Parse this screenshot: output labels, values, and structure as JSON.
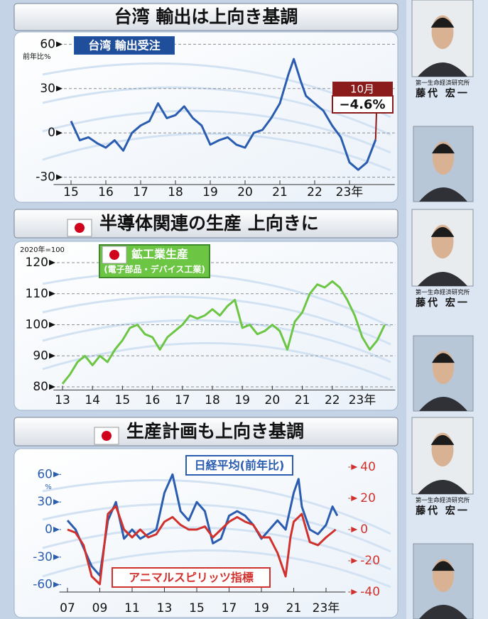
{
  "chart_data": [
    {
      "type": "line",
      "title": "台湾 輸出は上向き基調",
      "y_unit": "前年比%",
      "series": [
        {
          "name": "台湾 輸出受注",
          "color": "#2a5db0",
          "x": [
            2015,
            2015.25,
            2015.5,
            2015.75,
            2016,
            2016.25,
            2016.5,
            2016.75,
            2017,
            2017.25,
            2017.5,
            2017.75,
            2018,
            2018.25,
            2018.5,
            2018.75,
            2019,
            2019.25,
            2019.5,
            2019.75,
            2020,
            2020.25,
            2020.5,
            2020.75,
            2021,
            2021.25,
            2021.4,
            2021.6,
            2021.75,
            2022,
            2022.25,
            2022.5,
            2022.75,
            2023,
            2023.25,
            2023.5,
            2023.75
          ],
          "values": [
            8,
            -5,
            -3,
            -7,
            -10,
            -5,
            -12,
            0,
            5,
            8,
            20,
            10,
            12,
            18,
            10,
            5,
            -8,
            -5,
            -3,
            -8,
            -10,
            0,
            2,
            10,
            20,
            40,
            50,
            35,
            25,
            20,
            15,
            5,
            -3,
            -20,
            -25,
            -20,
            -4.6
          ],
          "value_labels": [
            null,
            null,
            null,
            null,
            null,
            null,
            null,
            null,
            null,
            null,
            null,
            null,
            null,
            null,
            null,
            null,
            null,
            null,
            null,
            null,
            null,
            null,
            null,
            null,
            null,
            null,
            null,
            null,
            null,
            null,
            null,
            null,
            null,
            null,
            null,
            null,
            "−4.6%"
          ]
        }
      ],
      "annotation": "10月",
      "xlim": [
        2014.5,
        2024.3
      ],
      "xticks": [
        {
          "value": 2015,
          "label": "15"
        },
        {
          "value": 2016,
          "label": "16"
        },
        {
          "value": 2017,
          "label": "17"
        },
        {
          "value": 2018,
          "label": "18"
        },
        {
          "value": 2019,
          "label": "19"
        },
        {
          "value": 2020,
          "label": "20"
        },
        {
          "value": 2021,
          "label": "21"
        },
        {
          "value": 2022,
          "label": "22"
        },
        {
          "value": 2023,
          "label": "23年"
        }
      ],
      "ylim": [
        -35,
        65
      ],
      "yticks": [
        -30,
        0,
        30,
        60
      ],
      "grid": true
    },
    {
      "type": "line",
      "title": "半導体関連の生産 上向きに",
      "y_unit": "2020年=100",
      "series": [
        {
          "name": "鉱工業生産",
          "note": "(電子部品・デバイス工業)",
          "color": "#6cc644",
          "x": [
            2013,
            2013.25,
            2013.5,
            2013.75,
            2014,
            2014.25,
            2014.5,
            2014.75,
            2015,
            2015.25,
            2015.5,
            2015.75,
            2016,
            2016.25,
            2016.5,
            2016.75,
            2017,
            2017.25,
            2017.5,
            2017.75,
            2018,
            2018.25,
            2018.5,
            2018.75,
            2019,
            2019.25,
            2019.5,
            2019.75,
            2020,
            2020.25,
            2020.5,
            2020.75,
            2021,
            2021.25,
            2021.5,
            2021.75,
            2022,
            2022.25,
            2022.5,
            2022.75,
            2023,
            2023.25,
            2023.5,
            2023.75
          ],
          "values": [
            81,
            84,
            88,
            90,
            87,
            90,
            88,
            92,
            95,
            99,
            100,
            97,
            96,
            92,
            96,
            98,
            100,
            103,
            102,
            103,
            105,
            103,
            106,
            108,
            99,
            100,
            97,
            98,
            100,
            98,
            92,
            101,
            104,
            110,
            113,
            112,
            114,
            112,
            108,
            103,
            96,
            92,
            95,
            100
          ]
        }
      ],
      "xlim": [
        2012.7,
        2024.1
      ],
      "xticks": [
        {
          "value": 2013,
          "label": "13"
        },
        {
          "value": 2014,
          "label": "14"
        },
        {
          "value": 2015,
          "label": "15"
        },
        {
          "value": 2016,
          "label": "16"
        },
        {
          "value": 2017,
          "label": "17"
        },
        {
          "value": 2018,
          "label": "18"
        },
        {
          "value": 2019,
          "label": "19"
        },
        {
          "value": 2020,
          "label": "20"
        },
        {
          "value": 2021,
          "label": "21"
        },
        {
          "value": 2022,
          "label": "22"
        },
        {
          "value": 2023,
          "label": "23年"
        }
      ],
      "ylim": [
        79,
        122
      ],
      "yticks": [
        80,
        90,
        100,
        110,
        120
      ],
      "grid": true
    },
    {
      "type": "line",
      "title": "生産計画も上向き基調",
      "y_unit": "%",
      "series": [
        {
          "name": "日経平均(前年比)",
          "color": "#2a5db0",
          "x": [
            2007,
            2007.5,
            2008,
            2008.5,
            2009,
            2009.5,
            2010,
            2010.5,
            2011,
            2011.5,
            2012,
            2012.5,
            2013,
            2013.5,
            2014,
            2014.5,
            2015,
            2015.5,
            2016,
            2016.5,
            2017,
            2017.5,
            2018,
            2018.5,
            2019,
            2019.5,
            2020,
            2020.5,
            2021,
            2021.3,
            2021.5,
            2022,
            2022.5,
            2023,
            2023.4,
            2023.7
          ],
          "values": [
            10,
            0,
            -20,
            -40,
            -50,
            10,
            30,
            -10,
            0,
            -10,
            -5,
            0,
            40,
            60,
            20,
            10,
            30,
            20,
            -15,
            -10,
            15,
            20,
            15,
            5,
            -10,
            0,
            10,
            0,
            40,
            55,
            25,
            0,
            -5,
            5,
            25,
            15
          ]
        },
        {
          "name": "アニマルスピリッツ指標",
          "color": "#d0312d",
          "axis": "y2",
          "x": [
            2007,
            2007.5,
            2008,
            2008.5,
            2009,
            2009.5,
            2010,
            2010.5,
            2011,
            2011.5,
            2012,
            2012.5,
            2013,
            2013.5,
            2014,
            2014.5,
            2015,
            2015.5,
            2016,
            2016.5,
            2017,
            2017.5,
            2018,
            2018.5,
            2019,
            2019.5,
            2020,
            2020.5,
            2020.8,
            2021,
            2021.5,
            2022,
            2022.5,
            2023,
            2023.6
          ],
          "values": [
            0,
            -2,
            -10,
            -30,
            -35,
            10,
            15,
            0,
            -5,
            0,
            -5,
            -3,
            5,
            8,
            3,
            0,
            0,
            2,
            -5,
            0,
            5,
            8,
            5,
            3,
            -5,
            -5,
            -15,
            -30,
            -5,
            5,
            10,
            -8,
            -10,
            -5,
            0
          ]
        }
      ],
      "xlim": [
        2006.5,
        2024.2
      ],
      "xticks": [
        {
          "value": 2007,
          "label": "07"
        },
        {
          "value": 2009,
          "label": "09"
        },
        {
          "value": 2011,
          "label": "11"
        },
        {
          "value": 2013,
          "label": "13"
        },
        {
          "value": 2015,
          "label": "15"
        },
        {
          "value": 2017,
          "label": "17"
        },
        {
          "value": 2019,
          "label": "19"
        },
        {
          "value": 2021,
          "label": "21"
        },
        {
          "value": 2023,
          "label": "23年"
        }
      ],
      "ylim": [
        -68,
        68
      ],
      "yticks": [
        -60,
        -30,
        0,
        30,
        60
      ],
      "y2lim": [
        -40,
        40
      ],
      "y2ticks": [
        -40,
        -20,
        0,
        20,
        40
      ],
      "grid": false
    }
  ],
  "sidebar": {
    "captions": [
      {
        "affiliation": "第一生命経済研究所",
        "name": "藤代 宏一"
      },
      {
        "affiliation": "第一生命経済研究所",
        "name": "藤代 宏一"
      },
      {
        "affiliation": "第一生命経済研究所",
        "name": "藤代 宏一"
      }
    ]
  }
}
